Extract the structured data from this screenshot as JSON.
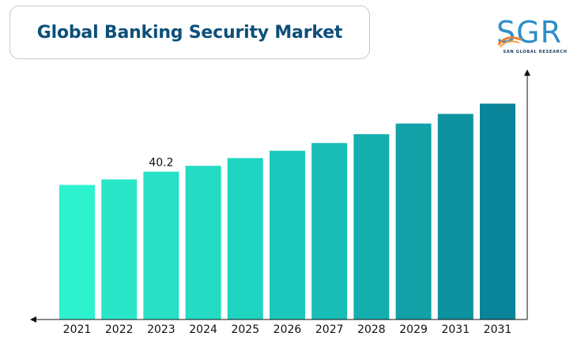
{
  "header": {
    "title": "Global Banking Security Market"
  },
  "logo": {
    "letters": "SGR",
    "subtitle": "SAN GLOBAL RESEARCH"
  },
  "chart_data": {
    "type": "bar",
    "title": "Global Banking Security Market",
    "categories": [
      "2021",
      "2022",
      "2023",
      "2024",
      "2025",
      "2026",
      "2027",
      "2028",
      "2029",
      "2031",
      "2031"
    ],
    "values": [
      36.6,
      38.1,
      40.2,
      41.8,
      43.9,
      45.9,
      48.0,
      50.4,
      53.3,
      55.9,
      58.7
    ],
    "data_labels": [
      null,
      null,
      "40.2",
      null,
      null,
      null,
      null,
      null,
      null,
      null,
      null
    ],
    "colors": [
      "#2ef2cd",
      "#2ae6c9",
      "#27e0c6",
      "#24dbc4",
      "#1fd4c1",
      "#1bc8bc",
      "#18bdb6",
      "#14aeae",
      "#11a1a7",
      "#0d92a0",
      "#0a8498"
    ],
    "xlabel": "",
    "ylabel": "",
    "ylim": [
      0,
      59
    ],
    "grid": false,
    "legend": "none"
  }
}
